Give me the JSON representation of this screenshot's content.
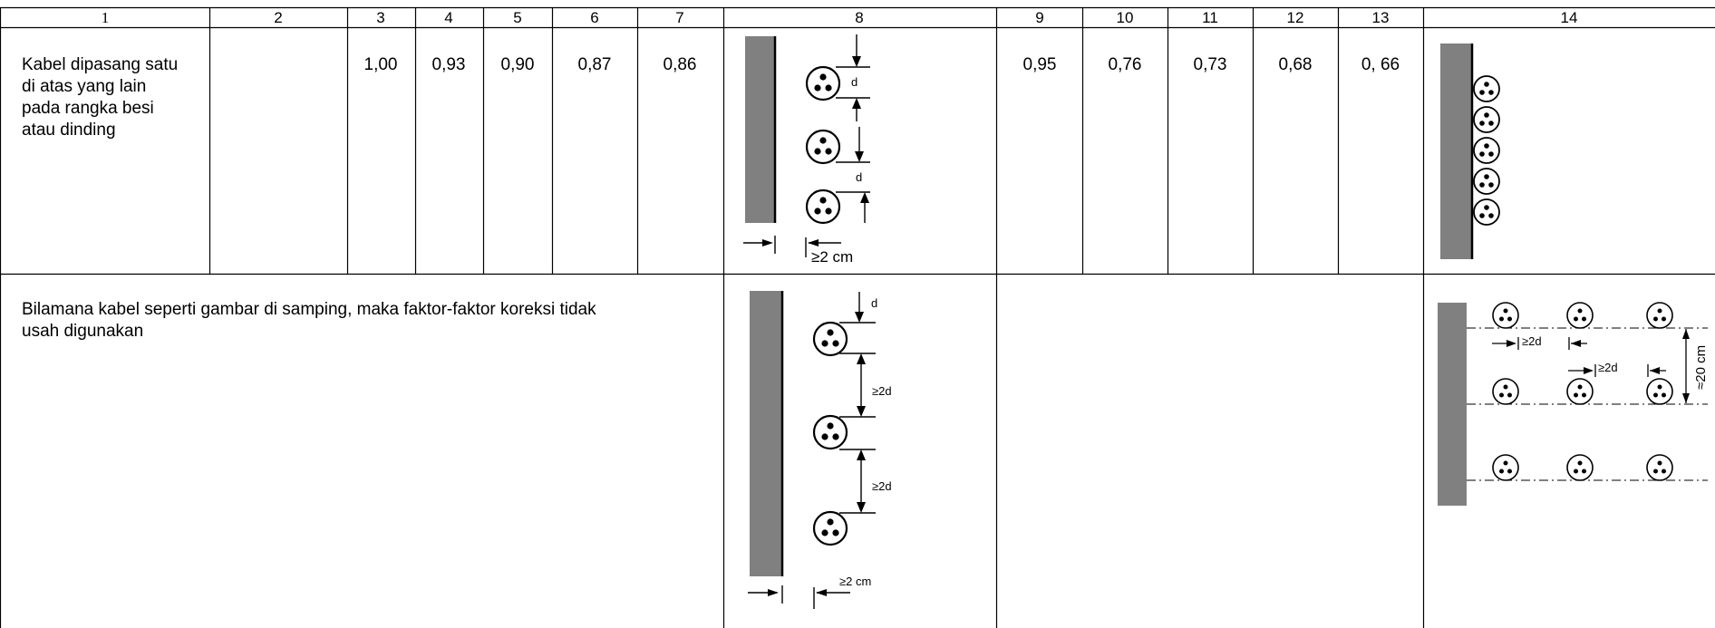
{
  "table": {
    "headers": [
      "1",
      "2",
      "3",
      "4",
      "5",
      "6",
      "7",
      "8",
      "9",
      "10",
      "11",
      "12",
      "13",
      "14"
    ],
    "row1": {
      "description_lines": [
        "Kabel dipasang satu",
        "di atas yang lain",
        "pada rangka besi",
        "atau dinding"
      ],
      "values_3_7": [
        "1,00",
        "0,93",
        "0,90",
        "0,87",
        "0,86"
      ],
      "values_9_13": [
        "0,95",
        "0,76",
        "0,73",
        "0,68",
        "0, 66"
      ],
      "diagram8_labels": {
        "d_top": "d",
        "d_bottom": "d",
        "spacing": "≥2 cm"
      }
    },
    "row2": {
      "description_lines": [
        "Bilamana kabel seperti gambar di samping, maka faktor-faktor koreksi tidak",
        "usah digunakan"
      ],
      "diagram8_labels": {
        "d_top": "d",
        "gap1": "≥2d",
        "gap2": "≥2d",
        "spacing": "≥2 cm"
      },
      "diagram14_labels": {
        "gap_h1": "≥2d",
        "gap_h2": "≥2d",
        "height": "≈20 cm"
      }
    }
  },
  "colors": {
    "wall": "#808080",
    "line": "#000000",
    "background": "#ffffff"
  }
}
